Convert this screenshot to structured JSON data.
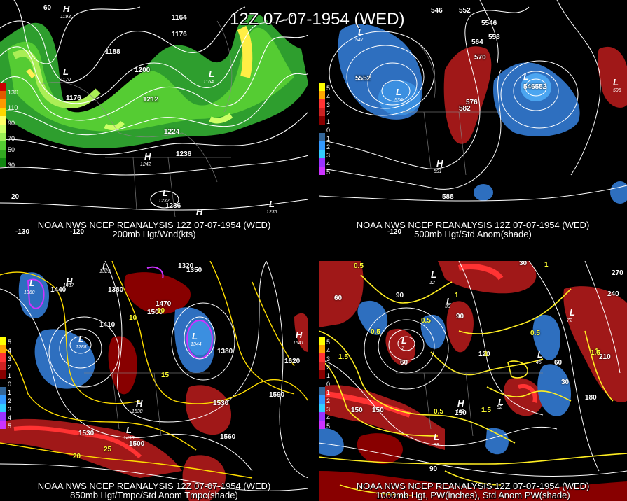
{
  "title": "12Z 07-07-1954 (WED)",
  "panels": [
    {
      "id": "p1",
      "caption1": "NOAA NWS NCEP REANALYSIS 12Z 07-07-1954 (WED)",
      "caption2": "200mb Hgt/Wnd(kts)",
      "legend": [
        {
          "label": "130",
          "color": "#cc0000"
        },
        {
          "label": "",
          "color": "#e05a00"
        },
        {
          "label": "110",
          "color": "#ff9900"
        },
        {
          "label": "",
          "color": "#ffd700"
        },
        {
          "label": "90",
          "color": "#ffff66"
        },
        {
          "label": "",
          "color": "#ccff66"
        },
        {
          "label": "70",
          "color": "#99ee55"
        },
        {
          "label": "50",
          "color": "#55cc33"
        },
        {
          "label": "",
          "color": "#33aa22"
        },
        {
          "label": "30",
          "color": "#118811"
        }
      ],
      "contour_labels": [
        "1164",
        "1176",
        "1188",
        "1200",
        "1212",
        "1224",
        "1236",
        "1176",
        "1236",
        "1236"
      ],
      "symbols": [
        {
          "letter": "H",
          "value": "1193"
        },
        {
          "letter": "L",
          "value": "1170"
        },
        {
          "letter": "L",
          "value": "1164"
        },
        {
          "letter": "H",
          "value": "1242"
        },
        {
          "letter": "L",
          "value": "1232"
        },
        {
          "letter": "H",
          "value": ""
        },
        {
          "letter": "L",
          "value": "1236"
        }
      ],
      "grid_labels": [
        "60",
        "20",
        "-130",
        "-120"
      ]
    },
    {
      "id": "p2",
      "caption1": "NOAA NWS NCEP REANALYSIS 12Z 07-07-1954 (WED)",
      "caption2": "500mb Hgt/Std Anom(shade)",
      "legend": [
        {
          "label": "5",
          "color": "#ffff00"
        },
        {
          "label": "4",
          "color": "#ffa500"
        },
        {
          "label": "3",
          "color": "#ff3333"
        },
        {
          "label": "2",
          "color": "#cc2222"
        },
        {
          "label": "1",
          "color": "#880000"
        },
        {
          "label": "0",
          "color": "#000000"
        },
        {
          "label": "1",
          "color": "#336699"
        },
        {
          "label": "2",
          "color": "#3399ff"
        },
        {
          "label": "3",
          "color": "#33ccff"
        },
        {
          "label": "4",
          "color": "#9933ff"
        },
        {
          "label": "5",
          "color": "#cc33ff"
        }
      ],
      "contour_labels": [
        "546",
        "552",
        "5546",
        "558",
        "564",
        "570",
        "576",
        "582",
        "5552",
        "552",
        "546552",
        "588"
      ],
      "symbols": [
        {
          "letter": "L",
          "value": "547"
        },
        {
          "letter": "L",
          "value": "536"
        },
        {
          "letter": "L",
          "value": "542"
        },
        {
          "letter": "H",
          "value": "591"
        },
        {
          "letter": "L",
          "value": "596"
        }
      ],
      "grid_labels": [
        "-120"
      ]
    },
    {
      "id": "p3",
      "caption1": "NOAA NWS NCEP REANALYSIS 12Z 07-07-1954 (WED)",
      "caption2": "850mb Hgt/Tmpc/Std Anom Tmpc(shade)",
      "legend": [
        {
          "label": "5",
          "color": "#ffff00"
        },
        {
          "label": "4",
          "color": "#ffa500"
        },
        {
          "label": "3",
          "color": "#ff3333"
        },
        {
          "label": "2",
          "color": "#cc2222"
        },
        {
          "label": "1",
          "color": "#880000"
        },
        {
          "label": "0",
          "color": "#000000"
        },
        {
          "label": "1",
          "color": "#336699"
        },
        {
          "label": "2",
          "color": "#3399ff"
        },
        {
          "label": "3",
          "color": "#33ccff"
        },
        {
          "label": "4",
          "color": "#9933ff"
        },
        {
          "label": "5",
          "color": "#cc33ff"
        }
      ],
      "contour_labels": [
        "1320",
        "1350",
        "1380",
        "1410",
        "1440",
        "1470",
        "1500",
        "1530",
        "1560",
        "1590",
        "1620",
        "1500",
        "1530",
        "1380",
        "1350"
      ],
      "temp_labels": [
        "10",
        "15",
        "20",
        "25",
        "20"
      ],
      "symbols": [
        {
          "letter": "L",
          "value": "1360"
        },
        {
          "letter": "L",
          "value": "1323"
        },
        {
          "letter": "H",
          "value": "1487"
        },
        {
          "letter": "L",
          "value": "1288"
        },
        {
          "letter": "L",
          "value": "1344"
        },
        {
          "letter": "H",
          "value": "1538"
        },
        {
          "letter": "L",
          "value": "1496"
        },
        {
          "letter": "H",
          "value": "1641"
        }
      ]
    },
    {
      "id": "p4",
      "caption1": "NOAA NWS NCEP REANALYSIS 12Z 07-07-1954 (WED)",
      "caption2": "1000mb Hgt, PW(inches), Std Anom PW(shade)",
      "legend": [
        {
          "label": "5",
          "color": "#ffff00"
        },
        {
          "label": "4",
          "color": "#ffa500"
        },
        {
          "label": "3",
          "color": "#ff3333"
        },
        {
          "label": "2",
          "color": "#cc2222"
        },
        {
          "label": "1",
          "color": "#880000"
        },
        {
          "label": "0",
          "color": "#000000"
        },
        {
          "label": "1",
          "color": "#336699"
        },
        {
          "label": "2",
          "color": "#3399ff"
        },
        {
          "label": "3",
          "color": "#33ccff"
        },
        {
          "label": "4",
          "color": "#9933ff"
        },
        {
          "label": "5",
          "color": "#cc33ff"
        }
      ],
      "contour_labels": [
        "30",
        "60",
        "90",
        "150",
        "150",
        "150",
        "180",
        "210",
        "240",
        "270",
        "60",
        "90",
        "30",
        "60",
        "120",
        "90"
      ],
      "pw_labels": [
        "0.5",
        "1",
        "1.5",
        "0.5",
        "0.5",
        "1",
        "1.5",
        "0.5",
        "1",
        "1.5",
        "0.5",
        "1"
      ],
      "symbols": [
        {
          "letter": "L",
          "value": "7"
        },
        {
          "letter": "L",
          "value": "12"
        },
        {
          "letter": "L",
          "value": "30"
        },
        {
          "letter": "L",
          "value": "45"
        },
        {
          "letter": "H",
          "value": "152"
        },
        {
          "letter": "L",
          "value": "63"
        },
        {
          "letter": "L",
          "value": "52"
        },
        {
          "letter": "L",
          "value": "72"
        }
      ]
    }
  ]
}
